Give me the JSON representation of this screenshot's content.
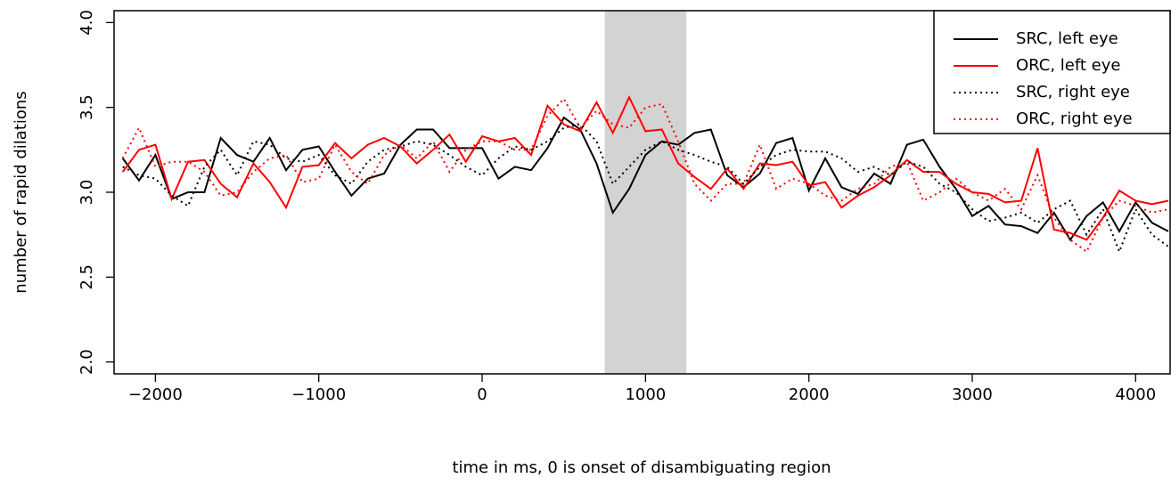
{
  "chart_data": {
    "type": "line",
    "xlabel": "time in ms, 0 is onset of disambiguating region",
    "ylabel": "number of rapid dilations",
    "x": [
      -2200,
      -2100,
      -2000,
      -1900,
      -1800,
      -1700,
      -1600,
      -1500,
      -1400,
      -1300,
      -1200,
      -1100,
      -1000,
      -900,
      -800,
      -700,
      -600,
      -500,
      -400,
      -300,
      -200,
      -100,
      0,
      100,
      200,
      300,
      400,
      500,
      600,
      700,
      800,
      900,
      1000,
      1100,
      1200,
      1300,
      1400,
      1500,
      1600,
      1700,
      1800,
      1900,
      2000,
      2100,
      2200,
      2300,
      2400,
      2500,
      2600,
      2700,
      2800,
      2900,
      3000,
      3100,
      3200,
      3300,
      3400,
      3500,
      3600,
      3700,
      3800,
      3900,
      4000,
      4100,
      4200
    ],
    "series": [
      {
        "name": "SRC, left eye",
        "color": "#000000",
        "linestyle": "solid",
        "values": [
          3.2,
          3.07,
          3.22,
          2.96,
          3.0,
          3.0,
          3.32,
          3.22,
          3.18,
          3.32,
          3.13,
          3.25,
          3.27,
          3.12,
          2.98,
          3.08,
          3.11,
          3.28,
          3.37,
          3.37,
          3.26,
          3.26,
          3.26,
          3.08,
          3.15,
          3.13,
          3.26,
          3.44,
          3.37,
          3.17,
          2.88,
          3.02,
          3.22,
          3.3,
          3.28,
          3.35,
          3.37,
          3.1,
          3.03,
          3.11,
          3.29,
          3.32,
          3.01,
          3.2,
          3.03,
          2.99,
          3.11,
          3.05,
          3.28,
          3.31,
          3.15,
          3.02,
          2.86,
          2.92,
          2.81,
          2.8,
          2.76,
          2.88,
          2.72,
          2.86,
          2.94,
          2.77,
          2.94,
          2.82,
          2.77
        ]
      },
      {
        "name": "ORC, left eye",
        "color": "#ff0000",
        "linestyle": "solid",
        "values": [
          3.12,
          3.25,
          3.28,
          2.96,
          3.18,
          3.19,
          3.05,
          2.97,
          3.17,
          3.06,
          2.91,
          3.15,
          3.16,
          3.29,
          3.2,
          3.28,
          3.32,
          3.27,
          3.17,
          3.25,
          3.34,
          3.18,
          3.33,
          3.3,
          3.32,
          3.22,
          3.51,
          3.4,
          3.36,
          3.53,
          3.35,
          3.56,
          3.36,
          3.37,
          3.17,
          3.09,
          3.02,
          3.14,
          3.02,
          3.17,
          3.16,
          3.18,
          3.04,
          3.06,
          2.91,
          2.98,
          3.03,
          3.1,
          3.19,
          3.12,
          3.12,
          3.05,
          3.0,
          2.99,
          2.94,
          2.95,
          3.26,
          2.78,
          2.76,
          2.72,
          2.85,
          3.01,
          2.95,
          2.93,
          2.95
        ]
      },
      {
        "name": "SRC, right eye",
        "color": "#000000",
        "linestyle": "dotted",
        "values": [
          3.15,
          3.1,
          3.08,
          2.98,
          2.92,
          3.15,
          3.25,
          3.1,
          3.3,
          3.28,
          3.2,
          3.18,
          3.22,
          3.1,
          3.05,
          3.18,
          3.25,
          3.27,
          3.3,
          3.28,
          3.22,
          3.15,
          3.1,
          3.2,
          3.27,
          3.25,
          3.3,
          3.38,
          3.4,
          3.3,
          3.05,
          3.15,
          3.25,
          3.3,
          3.25,
          3.22,
          3.18,
          3.15,
          3.05,
          3.15,
          3.22,
          3.25,
          3.24,
          3.24,
          3.2,
          3.12,
          3.15,
          3.1,
          3.18,
          3.15,
          3.05,
          3.0,
          2.9,
          2.83,
          2.85,
          2.88,
          2.82,
          2.9,
          2.95,
          2.75,
          2.9,
          2.65,
          2.9,
          2.75,
          2.68
        ]
      },
      {
        "name": "ORC, right eye",
        "color": "#ff0000",
        "linestyle": "dotted",
        "values": [
          3.2,
          3.38,
          3.15,
          3.18,
          3.18,
          3.12,
          2.98,
          3.0,
          3.12,
          3.2,
          3.22,
          3.06,
          3.08,
          3.28,
          3.12,
          3.05,
          3.22,
          3.28,
          3.2,
          3.3,
          3.12,
          3.25,
          3.3,
          3.3,
          3.25,
          3.25,
          3.45,
          3.55,
          3.38,
          3.48,
          3.4,
          3.38,
          3.5,
          3.52,
          3.3,
          3.05,
          2.95,
          3.05,
          3.05,
          3.28,
          3.02,
          3.08,
          3.05,
          2.98,
          2.95,
          3.02,
          3.05,
          3.15,
          3.18,
          2.95,
          3.0,
          3.08,
          3.0,
          2.95,
          3.02,
          2.9,
          3.1,
          2.85,
          2.72,
          2.65,
          2.85,
          2.95,
          2.92,
          2.88,
          2.9
        ]
      }
    ],
    "shaded_region": {
      "x": [
        750,
        1250
      ],
      "color": "#d3d3d3"
    },
    "xlim": [
      -2253,
      4211
    ],
    "ylim": [
      1.93,
      4.07
    ],
    "xticks": [
      {
        "value": -2000,
        "label": "−2000"
      },
      {
        "value": -1000,
        "label": "−1000"
      },
      0,
      1000,
      2000,
      3000,
      4000
    ],
    "yticks": [
      {
        "value": 2,
        "label": "2.0"
      },
      {
        "value": 2.5,
        "label": "2.5"
      },
      {
        "value": 3,
        "label": "3.0"
      },
      {
        "value": 3.5,
        "label": "3.5"
      },
      {
        "value": 4,
        "label": "4.0"
      }
    ],
    "legend": "top right"
  }
}
